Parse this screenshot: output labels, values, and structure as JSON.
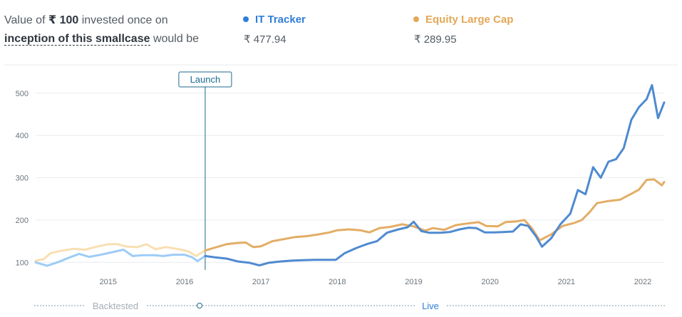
{
  "header": {
    "prefix": "Value of",
    "amount": "₹ 100",
    "suffix": "invested once on",
    "link": "inception of this smallcase",
    "tail": "would be"
  },
  "legend": [
    {
      "name": "IT Tracker",
      "value": "₹ 477.94",
      "color": "#2f7ed8"
    },
    {
      "name": "Equity Large Cap",
      "value": "₹ 289.95",
      "color": "#e3a857"
    }
  ],
  "colors": {
    "it_live": "#4f8ad0",
    "it_backtested": "#9dccf7",
    "eq_live": "#e3ad65",
    "eq_backtested": "#f8dfb2",
    "launch": "#1b6a8e",
    "timeline": "#7d97a8"
  },
  "chart_data": {
    "type": "line",
    "x_unit": "year",
    "xlim": [
      2014.05,
      2022.28
    ],
    "ylim": [
      82,
      535
    ],
    "yticks": [
      100,
      200,
      300,
      400,
      500
    ],
    "xticks": [
      2015,
      2016,
      2017,
      2018,
      2019,
      2020,
      2021,
      2022
    ],
    "tick_labels_y": [
      "100",
      "200",
      "300",
      "400",
      "500"
    ],
    "tick_labels_x": [
      "2015",
      "2016",
      "2017",
      "2018",
      "2019",
      "2020",
      "2021",
      "2022"
    ],
    "grid": true,
    "launch_x": 2016.27,
    "launch_label": "Launch",
    "timeline_labels": {
      "backtested": "Backtested",
      "live": "Live"
    },
    "series": [
      {
        "name": "IT Tracker",
        "points": [
          [
            2014.05,
            100
          ],
          [
            2014.2,
            92
          ],
          [
            2014.35,
            101
          ],
          [
            2014.5,
            112
          ],
          [
            2014.62,
            120
          ],
          [
            2014.75,
            113
          ],
          [
            2014.9,
            118
          ],
          [
            2015.05,
            124
          ],
          [
            2015.2,
            130
          ],
          [
            2015.32,
            115
          ],
          [
            2015.45,
            117
          ],
          [
            2015.6,
            117
          ],
          [
            2015.72,
            115
          ],
          [
            2015.85,
            118
          ],
          [
            2016.0,
            118
          ],
          [
            2016.1,
            112
          ],
          [
            2016.17,
            103
          ],
          [
            2016.27,
            115
          ],
          [
            2016.4,
            112
          ],
          [
            2016.55,
            109
          ],
          [
            2016.7,
            102
          ],
          [
            2016.85,
            99
          ],
          [
            2016.98,
            93
          ],
          [
            2017.1,
            99
          ],
          [
            2017.25,
            102
          ],
          [
            2017.4,
            104
          ],
          [
            2017.55,
            105
          ],
          [
            2017.7,
            106
          ],
          [
            2017.85,
            106
          ],
          [
            2017.98,
            106
          ],
          [
            2018.1,
            122
          ],
          [
            2018.25,
            134
          ],
          [
            2018.4,
            144
          ],
          [
            2018.52,
            150
          ],
          [
            2018.65,
            170
          ],
          [
            2018.8,
            178
          ],
          [
            2018.92,
            183
          ],
          [
            2019.0,
            196
          ],
          [
            2019.1,
            174
          ],
          [
            2019.2,
            170
          ],
          [
            2019.35,
            170
          ],
          [
            2019.48,
            172
          ],
          [
            2019.6,
            178
          ],
          [
            2019.72,
            182
          ],
          [
            2019.82,
            181
          ],
          [
            2019.93,
            171
          ],
          [
            2020.05,
            171
          ],
          [
            2020.2,
            172
          ],
          [
            2020.3,
            173
          ],
          [
            2020.4,
            190
          ],
          [
            2020.5,
            186
          ],
          [
            2020.6,
            162
          ],
          [
            2020.68,
            137
          ],
          [
            2020.8,
            157
          ],
          [
            2020.92,
            190
          ],
          [
            2021.05,
            215
          ],
          [
            2021.15,
            271
          ],
          [
            2021.25,
            261
          ],
          [
            2021.35,
            325
          ],
          [
            2021.45,
            300
          ],
          [
            2021.55,
            338
          ],
          [
            2021.65,
            344
          ],
          [
            2021.75,
            370
          ],
          [
            2021.85,
            437
          ],
          [
            2021.95,
            467
          ],
          [
            2022.05,
            486
          ],
          [
            2022.12,
            519
          ],
          [
            2022.2,
            441
          ],
          [
            2022.28,
            478
          ]
        ]
      },
      {
        "name": "Equity Large Cap",
        "points": [
          [
            2014.05,
            104
          ],
          [
            2014.15,
            107
          ],
          [
            2014.25,
            122
          ],
          [
            2014.4,
            128
          ],
          [
            2014.55,
            132
          ],
          [
            2014.7,
            130
          ],
          [
            2014.85,
            137
          ],
          [
            2015.0,
            143
          ],
          [
            2015.12,
            143
          ],
          [
            2015.25,
            137
          ],
          [
            2015.38,
            136
          ],
          [
            2015.5,
            143
          ],
          [
            2015.62,
            131
          ],
          [
            2015.75,
            136
          ],
          [
            2015.9,
            132
          ],
          [
            2016.05,
            126
          ],
          [
            2016.15,
            115
          ],
          [
            2016.27,
            128
          ],
          [
            2016.4,
            135
          ],
          [
            2016.55,
            143
          ],
          [
            2016.7,
            146
          ],
          [
            2016.8,
            147
          ],
          [
            2016.9,
            136
          ],
          [
            2017.0,
            138
          ],
          [
            2017.15,
            150
          ],
          [
            2017.3,
            155
          ],
          [
            2017.45,
            160
          ],
          [
            2017.6,
            162
          ],
          [
            2017.75,
            166
          ],
          [
            2017.9,
            171
          ],
          [
            2018.0,
            176
          ],
          [
            2018.15,
            178
          ],
          [
            2018.3,
            176
          ],
          [
            2018.42,
            171
          ],
          [
            2018.55,
            181
          ],
          [
            2018.7,
            184
          ],
          [
            2018.85,
            190
          ],
          [
            2019.0,
            185
          ],
          [
            2019.15,
            175
          ],
          [
            2019.25,
            181
          ],
          [
            2019.4,
            177
          ],
          [
            2019.55,
            188
          ],
          [
            2019.7,
            192
          ],
          [
            2019.85,
            195
          ],
          [
            2019.95,
            186
          ],
          [
            2020.1,
            185
          ],
          [
            2020.2,
            195
          ],
          [
            2020.35,
            197
          ],
          [
            2020.45,
            200
          ],
          [
            2020.55,
            180
          ],
          [
            2020.65,
            152
          ],
          [
            2020.8,
            166
          ],
          [
            2020.95,
            186
          ],
          [
            2021.1,
            193
          ],
          [
            2021.2,
            200
          ],
          [
            2021.3,
            218
          ],
          [
            2021.4,
            240
          ],
          [
            2021.55,
            245
          ],
          [
            2021.7,
            248
          ],
          [
            2021.85,
            262
          ],
          [
            2021.95,
            272
          ],
          [
            2022.05,
            295
          ],
          [
            2022.15,
            296
          ],
          [
            2022.25,
            282
          ],
          [
            2022.28,
            290
          ]
        ]
      }
    ]
  }
}
